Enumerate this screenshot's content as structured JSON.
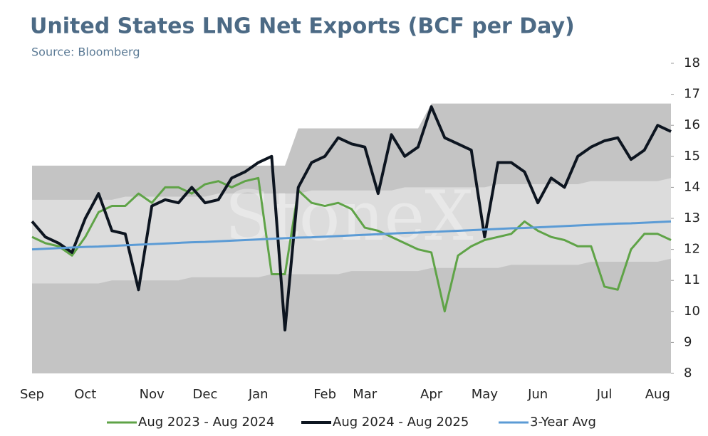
{
  "chart_data": {
    "type": "line",
    "title": "United States LNG Net Exports (BCF per Day)",
    "subtitle": "Source: Bloomberg",
    "watermark": "StoneX",
    "categories": [
      "Sep",
      null,
      null,
      null,
      "Oct",
      null,
      null,
      null,
      null,
      "Nov",
      null,
      null,
      null,
      "Dec",
      null,
      null,
      null,
      "Jan",
      null,
      null,
      null,
      null,
      "Feb",
      null,
      null,
      "Mar",
      null,
      null,
      null,
      null,
      "Apr",
      null,
      null,
      null,
      "May",
      null,
      null,
      null,
      "Jun",
      null,
      null,
      null,
      null,
      "Jul",
      null,
      null,
      null,
      "Aug",
      null
    ],
    "ylim": [
      8,
      18
    ],
    "yticks": [
      8,
      9,
      10,
      11,
      12,
      13,
      14,
      15,
      16,
      17,
      18
    ],
    "range_max": {
      "color": "#c4c4c4",
      "values": [
        14.7,
        14.7,
        14.7,
        14.7,
        14.7,
        14.7,
        14.7,
        14.7,
        14.7,
        14.7,
        14.7,
        14.7,
        14.7,
        14.7,
        14.7,
        14.7,
        14.7,
        14.7,
        14.7,
        14.7,
        15.9,
        15.9,
        15.9,
        15.9,
        15.9,
        15.9,
        15.9,
        15.9,
        15.9,
        15.9,
        16.7,
        16.7,
        16.7,
        16.7,
        16.7,
        16.7,
        16.7,
        16.7,
        16.7,
        16.7,
        16.7,
        16.7,
        16.7,
        16.7,
        16.7,
        16.7,
        16.7,
        16.7,
        16.7
      ]
    },
    "range_band": {
      "color": "#dcdcdc",
      "lower": [
        10.9,
        10.9,
        10.9,
        10.9,
        10.9,
        10.9,
        11.0,
        11.0,
        11.0,
        11.0,
        11.0,
        11.0,
        11.1,
        11.1,
        11.1,
        11.1,
        11.1,
        11.1,
        11.2,
        11.2,
        11.2,
        11.2,
        11.2,
        11.2,
        11.3,
        11.3,
        11.3,
        11.3,
        11.3,
        11.3,
        11.4,
        11.4,
        11.4,
        11.4,
        11.4,
        11.4,
        11.5,
        11.5,
        11.5,
        11.5,
        11.5,
        11.5,
        11.6,
        11.6,
        11.6,
        11.6,
        11.6,
        11.6,
        11.7
      ],
      "upper": [
        13.6,
        13.6,
        13.6,
        13.6,
        13.6,
        13.6,
        13.6,
        13.7,
        13.7,
        13.7,
        13.7,
        13.7,
        13.7,
        13.7,
        13.8,
        13.8,
        13.8,
        13.8,
        13.8,
        13.8,
        13.8,
        13.9,
        13.9,
        13.9,
        13.9,
        13.9,
        13.9,
        13.9,
        14.0,
        14.0,
        14.0,
        14.0,
        14.0,
        14.0,
        14.0,
        14.1,
        14.1,
        14.1,
        14.1,
        14.1,
        14.1,
        14.1,
        14.2,
        14.2,
        14.2,
        14.2,
        14.2,
        14.2,
        14.3
      ]
    },
    "series": [
      {
        "name": "Aug 2023 - Aug 2024",
        "color": "#5fa347",
        "width": 3,
        "values": [
          12.4,
          12.2,
          12.1,
          11.8,
          12.4,
          13.2,
          13.4,
          13.4,
          13.8,
          13.5,
          14.0,
          14.0,
          13.8,
          14.1,
          14.2,
          14.0,
          14.2,
          14.3,
          11.2,
          11.2,
          13.9,
          13.5,
          13.4,
          13.5,
          13.3,
          12.7,
          12.6,
          12.4,
          12.2,
          12.0,
          11.9,
          10.0,
          11.8,
          12.1,
          12.3,
          12.4,
          12.5,
          12.9,
          12.6,
          12.4,
          12.3,
          12.1,
          12.1,
          10.8,
          10.7,
          12.0,
          12.5,
          12.5,
          12.3
        ]
      },
      {
        "name": "Aug 2024 - Aug 2025",
        "color": "#0d1520",
        "width": 4,
        "values": [
          12.9,
          12.4,
          12.2,
          11.9,
          13.0,
          13.8,
          12.6,
          12.5,
          10.7,
          13.4,
          13.6,
          13.5,
          14.0,
          13.5,
          13.6,
          14.3,
          14.5,
          14.8,
          15.0,
          9.4,
          14.0,
          14.8,
          15.0,
          15.6,
          15.4,
          15.3,
          13.8,
          15.7,
          15.0,
          15.3,
          16.6,
          15.6,
          15.4,
          15.2,
          12.4,
          14.8,
          14.8,
          14.5,
          13.5,
          14.3,
          14.0,
          15.0,
          15.3,
          15.5,
          15.6,
          14.9,
          15.2,
          16.0,
          15.8
        ]
      },
      {
        "name": "3-Year Avg",
        "color": "#5b9bd5",
        "width": 3,
        "values": [
          12.0,
          12.02,
          12.04,
          12.06,
          12.08,
          12.09,
          12.11,
          12.13,
          12.15,
          12.17,
          12.19,
          12.21,
          12.23,
          12.24,
          12.26,
          12.28,
          12.3,
          12.32,
          12.34,
          12.36,
          12.38,
          12.39,
          12.41,
          12.43,
          12.45,
          12.47,
          12.49,
          12.51,
          12.53,
          12.54,
          12.56,
          12.58,
          12.6,
          12.62,
          12.64,
          12.66,
          12.68,
          12.69,
          12.71,
          12.73,
          12.75,
          12.77,
          12.79,
          12.81,
          12.83,
          12.84,
          12.86,
          12.88,
          12.9
        ]
      }
    ]
  }
}
